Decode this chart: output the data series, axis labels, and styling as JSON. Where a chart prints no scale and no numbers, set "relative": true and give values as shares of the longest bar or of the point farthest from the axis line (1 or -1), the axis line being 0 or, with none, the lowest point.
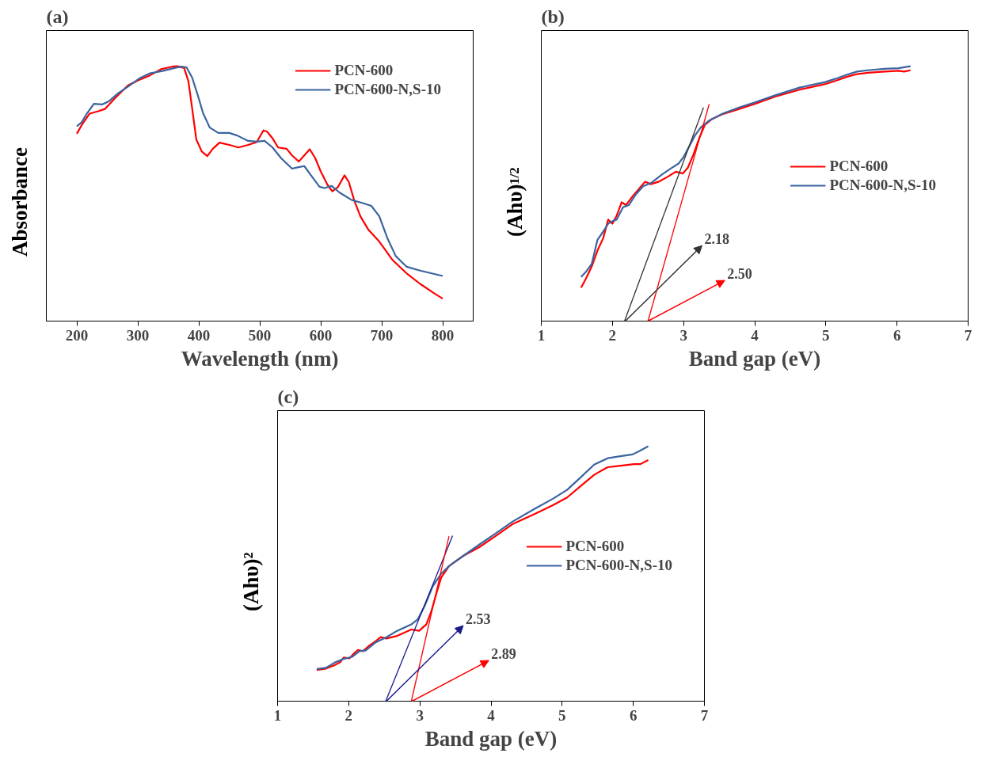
{
  "chart_data": [
    {
      "type": "line",
      "title": "(a)",
      "xlabel": "Wavelength (nm)",
      "ylabel": "Absorbance",
      "relative": true,
      "xlim": [
        150,
        850
      ],
      "xticks": [
        200,
        300,
        400,
        500,
        600,
        700,
        800
      ],
      "legend": "top right",
      "series": [
        {
          "name": "PCN-600",
          "color": "#ff0000",
          "x": [
            200,
            208,
            221,
            235,
            246,
            262,
            284,
            302,
            320,
            338,
            356,
            365,
            376,
            383,
            389,
            396,
            405,
            414,
            423,
            434,
            450,
            465,
            481,
            495,
            506,
            512,
            521,
            530,
            544,
            553,
            564,
            573,
            582,
            591,
            600,
            611,
            619,
            628,
            639,
            646,
            655,
            665,
            678,
            696,
            718,
            741,
            763,
            786,
            800
          ],
          "values": [
            0.735,
            0.769,
            0.814,
            0.823,
            0.832,
            0.873,
            0.925,
            0.946,
            0.964,
            0.988,
            0.998,
            1.0,
            0.993,
            0.941,
            0.837,
            0.712,
            0.665,
            0.647,
            0.676,
            0.7,
            0.691,
            0.681,
            0.691,
            0.702,
            0.748,
            0.743,
            0.717,
            0.681,
            0.676,
            0.65,
            0.626,
            0.65,
            0.674,
            0.639,
            0.587,
            0.535,
            0.509,
            0.525,
            0.572,
            0.546,
            0.473,
            0.411,
            0.359,
            0.312,
            0.239,
            0.187,
            0.146,
            0.109,
            0.088
          ]
        },
        {
          "name": "PCN-600-N,S-10",
          "color": "#3a64a0",
          "x": [
            200,
            208,
            217,
            228,
            242,
            253,
            268,
            284,
            302,
            320,
            342,
            360,
            371,
            380,
            389,
            398,
            407,
            418,
            432,
            450,
            463,
            481,
            495,
            508,
            521,
            535,
            553,
            562,
            573,
            584,
            598,
            606,
            618,
            631,
            651,
            669,
            683,
            696,
            709,
            723,
            741,
            763,
            800
          ],
          "values": [
            0.764,
            0.78,
            0.816,
            0.852,
            0.85,
            0.863,
            0.894,
            0.92,
            0.951,
            0.972,
            0.982,
            0.993,
            0.998,
            0.995,
            0.956,
            0.889,
            0.816,
            0.759,
            0.738,
            0.738,
            0.728,
            0.707,
            0.704,
            0.707,
            0.681,
            0.639,
            0.598,
            0.603,
            0.608,
            0.572,
            0.527,
            0.522,
            0.53,
            0.504,
            0.475,
            0.463,
            0.452,
            0.411,
            0.327,
            0.255,
            0.213,
            0.198,
            0.177
          ]
        }
      ]
    },
    {
      "type": "line",
      "title": "(b)",
      "xlabel": "Band gap (eV)",
      "ylabel": "(Ahυ)$^{1/2}$",
      "relative": true,
      "xlim": [
        1,
        7
      ],
      "xticks": [
        1,
        2,
        3,
        4,
        5,
        6,
        7
      ],
      "legend": "right",
      "series": [
        {
          "name": "PCN-600",
          "color": "#ff0000",
          "x": [
            1.56,
            1.63,
            1.71,
            1.79,
            1.87,
            1.94,
            2.0,
            2.06,
            2.13,
            2.19,
            2.29,
            2.39,
            2.46,
            2.54,
            2.66,
            2.77,
            2.89,
            2.99,
            3.06,
            3.14,
            3.22,
            3.3,
            3.39,
            3.55,
            3.78,
            4.01,
            4.28,
            4.63,
            4.98,
            5.13,
            5.29,
            5.44,
            5.59,
            5.83,
            6.02,
            6.1,
            6.19
          ],
          "values": [
            0.131,
            0.168,
            0.215,
            0.277,
            0.325,
            0.398,
            0.382,
            0.414,
            0.466,
            0.455,
            0.492,
            0.524,
            0.547,
            0.537,
            0.548,
            0.565,
            0.586,
            0.579,
            0.602,
            0.654,
            0.717,
            0.77,
            0.791,
            0.812,
            0.832,
            0.853,
            0.88,
            0.908,
            0.929,
            0.942,
            0.958,
            0.969,
            0.974,
            0.979,
            0.982,
            0.979,
            0.984
          ]
        },
        {
          "name": "PCN-600-N,S-10",
          "color": "#3a64a0",
          "x": [
            1.56,
            1.63,
            1.71,
            1.79,
            1.87,
            1.94,
            2.02,
            2.06,
            2.15,
            2.23,
            2.33,
            2.43,
            2.54,
            2.7,
            2.81,
            2.93,
            3.0,
            3.08,
            3.16,
            3.24,
            3.35,
            3.55,
            3.78,
            4.01,
            4.28,
            4.63,
            4.98,
            5.13,
            5.29,
            5.44,
            5.59,
            5.83,
            6.02,
            6.19
          ],
          "values": [
            0.173,
            0.194,
            0.225,
            0.319,
            0.351,
            0.382,
            0.395,
            0.398,
            0.447,
            0.455,
            0.497,
            0.529,
            0.541,
            0.576,
            0.597,
            0.618,
            0.644,
            0.686,
            0.728,
            0.759,
            0.785,
            0.814,
            0.838,
            0.859,
            0.885,
            0.916,
            0.937,
            0.95,
            0.966,
            0.979,
            0.984,
            0.99,
            0.992,
            1.0
          ]
        },
        {
          "type": "line",
          "color": "#333333",
          "x": [
            2.17,
            3.28
          ],
          "values": [
            0,
            0.838
          ]
        },
        {
          "type": "line",
          "color": "#ff0000",
          "x": [
            2.5,
            3.36
          ],
          "values": [
            0,
            0.851
          ]
        }
      ],
      "annotations": [
        {
          "text": "2.18",
          "x": 2.18,
          "y": 0
        },
        {
          "text": "2.50",
          "x": 2.5,
          "y": 0
        }
      ]
    },
    {
      "type": "line",
      "title": "(c)",
      "xlabel": "Band gap (eV)",
      "ylabel": "(Ahυ)²",
      "relative": true,
      "xlim": [
        1,
        7
      ],
      "xticks": [
        1,
        2,
        3,
        4,
        5,
        6,
        7
      ],
      "legend": "right",
      "series": [
        {
          "name": "PCN-600",
          "color": "#ff0000",
          "x": [
            1.55,
            1.68,
            1.8,
            1.88,
            1.93,
            2.01,
            2.07,
            2.13,
            2.2,
            2.28,
            2.38,
            2.45,
            2.53,
            2.68,
            2.88,
            2.99,
            3.09,
            3.16,
            3.24,
            3.3,
            3.41,
            3.61,
            3.84,
            4.07,
            4.3,
            4.61,
            4.87,
            5.07,
            5.26,
            5.45,
            5.64,
            5.8,
            6.01,
            6.1,
            6.21
          ],
          "values": [
            0.122,
            0.128,
            0.141,
            0.153,
            0.171,
            0.168,
            0.186,
            0.201,
            0.196,
            0.216,
            0.236,
            0.251,
            0.246,
            0.256,
            0.281,
            0.276,
            0.301,
            0.351,
            0.43,
            0.485,
            0.53,
            0.57,
            0.605,
            0.649,
            0.694,
            0.734,
            0.769,
            0.799,
            0.844,
            0.888,
            0.918,
            0.923,
            0.93,
            0.93,
            0.946
          ]
        },
        {
          "name": "PCN-600-N,S-10",
          "color": "#3a64a0",
          "x": [
            1.55,
            1.68,
            1.8,
            1.93,
            2.05,
            2.15,
            2.24,
            2.38,
            2.53,
            2.68,
            2.88,
            2.97,
            3.07,
            3.18,
            3.3,
            3.41,
            3.61,
            3.84,
            4.07,
            4.3,
            4.61,
            4.87,
            5.07,
            5.26,
            5.45,
            5.64,
            5.8,
            5.99,
            6.1,
            6.21
          ],
          "values": [
            0.126,
            0.131,
            0.151,
            0.166,
            0.174,
            0.196,
            0.199,
            0.231,
            0.251,
            0.276,
            0.301,
            0.321,
            0.375,
            0.45,
            0.5,
            0.53,
            0.57,
            0.615,
            0.659,
            0.704,
            0.754,
            0.794,
            0.829,
            0.878,
            0.928,
            0.953,
            0.96,
            0.968,
            0.983,
            1.0
          ]
        },
        {
          "type": "line",
          "color": "#1a1a8c",
          "x": [
            2.52,
            3.46
          ],
          "values": [
            0,
            0.649
          ]
        },
        {
          "type": "line",
          "color": "#ff0000",
          "x": [
            2.88,
            3.41
          ],
          "values": [
            0,
            0.647
          ]
        }
      ],
      "annotations": [
        {
          "text": "2.53",
          "x": 2.53,
          "y": 0
        },
        {
          "text": "2.89",
          "x": 2.89,
          "y": 0
        }
      ]
    }
  ]
}
